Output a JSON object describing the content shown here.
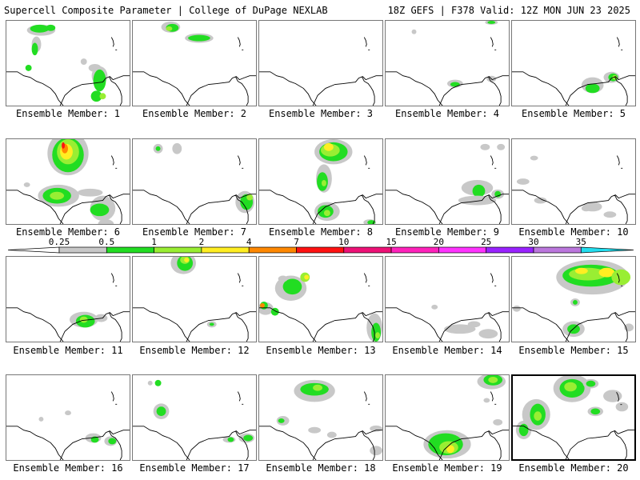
{
  "header": {
    "left_title": "Supercell Composite Parameter | College of DuPage NEXLAB",
    "right_title": "18Z GEFS | F378 Valid: 12Z MON JUN 23 2025"
  },
  "caption_prefix": "Ensemble Member:",
  "colors": {
    "gray": "#c8c8c8",
    "green": "#22dd22",
    "lime": "#99ee33",
    "yellow": "#ffee22",
    "orange": "#ff8800",
    "red": "#ff1111",
    "coastline": "#000000"
  },
  "colorbar": {
    "labels": [
      "0.25",
      "0.5",
      "1",
      "2",
      "4",
      "7",
      "10",
      "15",
      "20",
      "25",
      "30",
      "35"
    ],
    "colors": [
      "#c8c8c8",
      "#22dd22",
      "#99ee33",
      "#ffee22",
      "#ff8800",
      "#ff1111",
      "#ee1177",
      "#ff22bb",
      "#ff33ff",
      "#9922ff",
      "#bb77dd",
      "#22ddee"
    ]
  },
  "members": [
    {
      "id": 1,
      "caption": "Ensemble Member: 1",
      "selected": false
    },
    {
      "id": 2,
      "caption": "Ensemble Member: 2",
      "selected": false
    },
    {
      "id": 3,
      "caption": "Ensemble Member: 3",
      "selected": false
    },
    {
      "id": 4,
      "caption": "Ensemble Member: 4",
      "selected": false
    },
    {
      "id": 5,
      "caption": "Ensemble Member: 5",
      "selected": false
    },
    {
      "id": 6,
      "caption": "Ensemble Member: 6",
      "selected": false
    },
    {
      "id": 7,
      "caption": "Ensemble Member: 7",
      "selected": false
    },
    {
      "id": 8,
      "caption": "Ensemble Member: 8",
      "selected": false
    },
    {
      "id": 9,
      "caption": "Ensemble Member: 9",
      "selected": false
    },
    {
      "id": 10,
      "caption": "Ensemble Member: 10",
      "selected": false
    },
    {
      "id": 11,
      "caption": "Ensemble Member: 11",
      "selected": false
    },
    {
      "id": 12,
      "caption": "Ensemble Member: 12",
      "selected": false
    },
    {
      "id": 13,
      "caption": "Ensemble Member: 13",
      "selected": false
    },
    {
      "id": 14,
      "caption": "Ensemble Member: 14",
      "selected": false
    },
    {
      "id": 15,
      "caption": "Ensemble Member: 15",
      "selected": false
    },
    {
      "id": 16,
      "caption": "Ensemble Member: 16",
      "selected": false
    },
    {
      "id": 17,
      "caption": "Ensemble Member: 17",
      "selected": false
    },
    {
      "id": 18,
      "caption": "Ensemble Member: 18",
      "selected": false
    },
    {
      "id": 19,
      "caption": "Ensemble Member: 19",
      "selected": false
    },
    {
      "id": 20,
      "caption": "Ensemble Member: 20",
      "selected": true
    }
  ]
}
